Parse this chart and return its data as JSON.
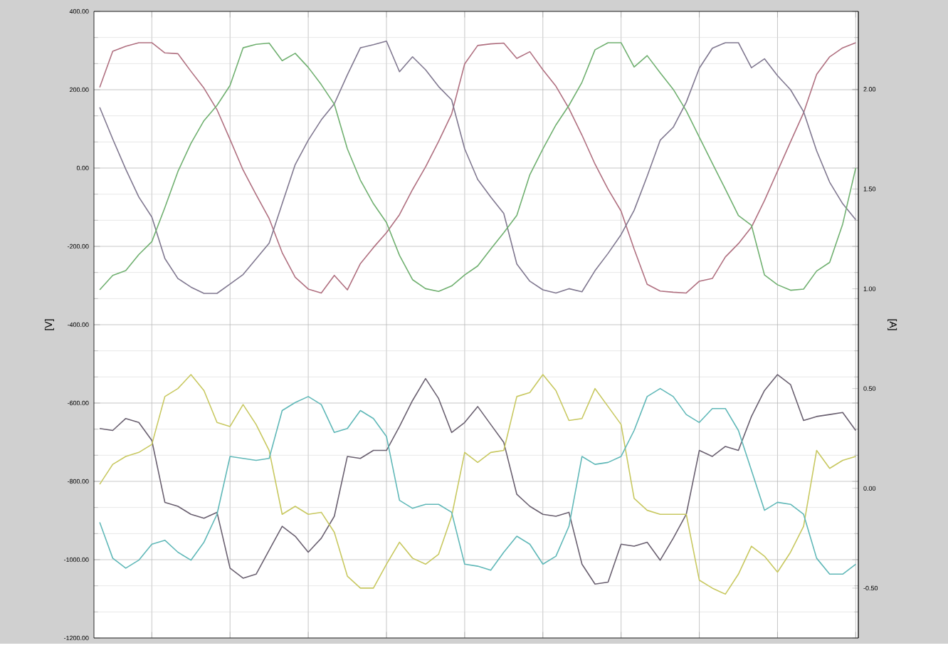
{
  "chart_data": {
    "type": "line",
    "ylabel": "[V]",
    "y2label": "[A]",
    "categories": [
      null,
      null,
      null,
      null,
      null,
      null,
      null,
      null,
      null,
      null,
      null,
      null,
      null,
      null,
      null,
      null,
      null,
      null,
      null,
      null,
      null,
      null,
      null,
      null,
      null,
      null,
      null,
      null,
      null,
      null,
      null,
      null,
      null,
      null,
      null,
      null,
      null,
      null,
      null,
      null,
      null,
      null,
      null,
      null,
      null,
      null,
      null,
      null,
      null,
      null,
      null,
      null,
      null,
      null,
      null,
      null,
      null,
      null,
      null
    ],
    "ylim": [
      -1200,
      400
    ],
    "yticks": [
      {
        "value": 400,
        "label": "400.00"
      },
      {
        "value": 200,
        "label": "200.00"
      },
      {
        "value": 0,
        "label": "0.00"
      },
      {
        "value": -200,
        "label": "-200.00"
      },
      {
        "value": -400,
        "label": "-400.00"
      },
      {
        "value": -600,
        "label": "-600.00"
      },
      {
        "value": -800,
        "label": "-800.00"
      },
      {
        "value": -1000,
        "label": "-1000.00"
      },
      {
        "value": -1200,
        "label": "-1200.00"
      }
    ],
    "y2lim": [
      -0.75,
      2.39
    ],
    "y2ticks": [
      {
        "value": 2,
        "label": "2.00"
      },
      {
        "value": 1.5,
        "label": "1.50"
      },
      {
        "value": 1,
        "label": "1.00"
      },
      {
        "value": 0.5,
        "label": "0.50"
      },
      {
        "value": 0,
        "label": "0.00"
      },
      {
        "value": -0.5,
        "label": "-0.50"
      }
    ],
    "tick_labels": "y",
    "grid": true,
    "marker": "none",
    "line_style": "solid",
    "series": [
      {
        "color": "#b07080",
        "values": [
          206,
          298,
          311,
          320,
          320,
          294,
          292,
          247,
          204,
          149,
          73,
          -5,
          -68,
          -129,
          -216,
          -279,
          -309,
          -319,
          -274,
          -311,
          -244,
          -203,
          -165,
          -119,
          -55,
          3,
          68,
          138,
          266,
          313,
          317,
          319,
          280,
          297,
          251,
          209,
          152,
          84,
          10,
          -54,
          -110,
          -207,
          -297,
          -314,
          -317,
          -319,
          -289,
          -282,
          -227,
          -193,
          -151,
          -83,
          -8,
          67,
          141,
          239,
          284,
          307,
          320
        ]
      },
      {
        "color": "#807890",
        "values": [
          155,
          74,
          -3,
          -74,
          -125,
          -231,
          -282,
          -304,
          -320,
          -320,
          -296,
          -272,
          -232,
          -192,
          -91,
          9,
          71,
          123,
          164,
          238,
          307,
          315,
          324,
          246,
          284,
          251,
          208,
          174,
          49,
          -29,
          -74,
          -116,
          -245,
          -289,
          -311,
          -319,
          -308,
          -316,
          -262,
          -218,
          -170,
          -108,
          -21,
          71,
          104,
          168,
          255,
          306,
          320,
          320,
          256,
          279,
          236,
          200,
          144,
          44,
          -36,
          -91,
          -132
        ]
      },
      {
        "color": "#70b070",
        "values": [
          -311,
          -274,
          -262,
          -221,
          -188,
          -101,
          -9,
          63,
          121,
          160,
          211,
          307,
          316,
          319,
          274,
          293,
          257,
          213,
          163,
          49,
          -31,
          -91,
          -139,
          -223,
          -285,
          -308,
          -315,
          -301,
          -273,
          -250,
          -207,
          -165,
          -121,
          -17,
          49,
          110,
          160,
          219,
          302,
          320,
          320,
          258,
          287,
          243,
          201,
          146,
          79,
          12,
          -54,
          -121,
          -146,
          -273,
          -298,
          -312,
          -309,
          -263,
          -241,
          -143,
          0
        ]
      },
      {
        "color": "#6a6070",
        "axis": "y2",
        "values": [
          0.3,
          0.29,
          0.35,
          0.33,
          0.24,
          -0.07,
          -0.09,
          -0.13,
          -0.15,
          -0.12,
          -0.4,
          -0.45,
          -0.43,
          -0.31,
          -0.19,
          -0.24,
          -0.32,
          -0.25,
          -0.14,
          0.16,
          0.15,
          0.19,
          0.19,
          0.31,
          0.44,
          0.55,
          0.45,
          0.28,
          0.33,
          0.41,
          0.32,
          0.23,
          -0.03,
          -0.09,
          -0.13,
          -0.14,
          -0.12,
          -0.38,
          -0.48,
          -0.47,
          -0.28,
          -0.29,
          -0.27,
          -0.36,
          -0.25,
          -0.13,
          0.19,
          0.16,
          0.21,
          0.19,
          0.36,
          0.49,
          0.57,
          0.52,
          0.34,
          0.36,
          0.37,
          0.38,
          0.29
        ]
      },
      {
        "color": "#c8c860",
        "axis": "y2",
        "values": [
          0.02,
          0.12,
          0.16,
          0.18,
          0.22,
          0.46,
          0.5,
          0.57,
          0.49,
          0.33,
          0.31,
          0.42,
          0.32,
          0.19,
          -0.13,
          -0.09,
          -0.13,
          -0.12,
          -0.22,
          -0.44,
          -0.5,
          -0.5,
          -0.38,
          -0.27,
          -0.35,
          -0.38,
          -0.33,
          -0.14,
          0.18,
          0.13,
          0.18,
          0.19,
          0.46,
          0.48,
          0.57,
          0.49,
          0.34,
          0.35,
          0.5,
          0.41,
          0.32,
          -0.05,
          -0.11,
          -0.13,
          -0.13,
          -0.13,
          -0.46,
          -0.5,
          -0.53,
          -0.43,
          -0.29,
          -0.34,
          -0.42,
          -0.32,
          -0.19,
          0.19,
          0.1,
          0.14,
          0.16
        ]
      },
      {
        "color": "#60b8b8",
        "axis": "y2",
        "values": [
          -0.17,
          -0.35,
          -0.4,
          -0.36,
          -0.28,
          -0.26,
          -0.32,
          -0.36,
          -0.27,
          -0.13,
          0.16,
          0.15,
          0.14,
          0.15,
          0.39,
          0.43,
          0.46,
          0.42,
          0.28,
          0.3,
          0.39,
          0.35,
          0.26,
          -0.06,
          -0.1,
          -0.08,
          -0.08,
          -0.12,
          -0.38,
          -0.39,
          -0.41,
          -0.32,
          -0.24,
          -0.28,
          -0.38,
          -0.34,
          -0.19,
          0.16,
          0.12,
          0.13,
          0.16,
          0.29,
          0.46,
          0.5,
          0.46,
          0.37,
          0.33,
          0.4,
          0.4,
          0.29,
          0.09,
          -0.11,
          -0.07,
          -0.08,
          -0.13,
          -0.35,
          -0.43,
          -0.43,
          -0.38
        ]
      }
    ]
  }
}
